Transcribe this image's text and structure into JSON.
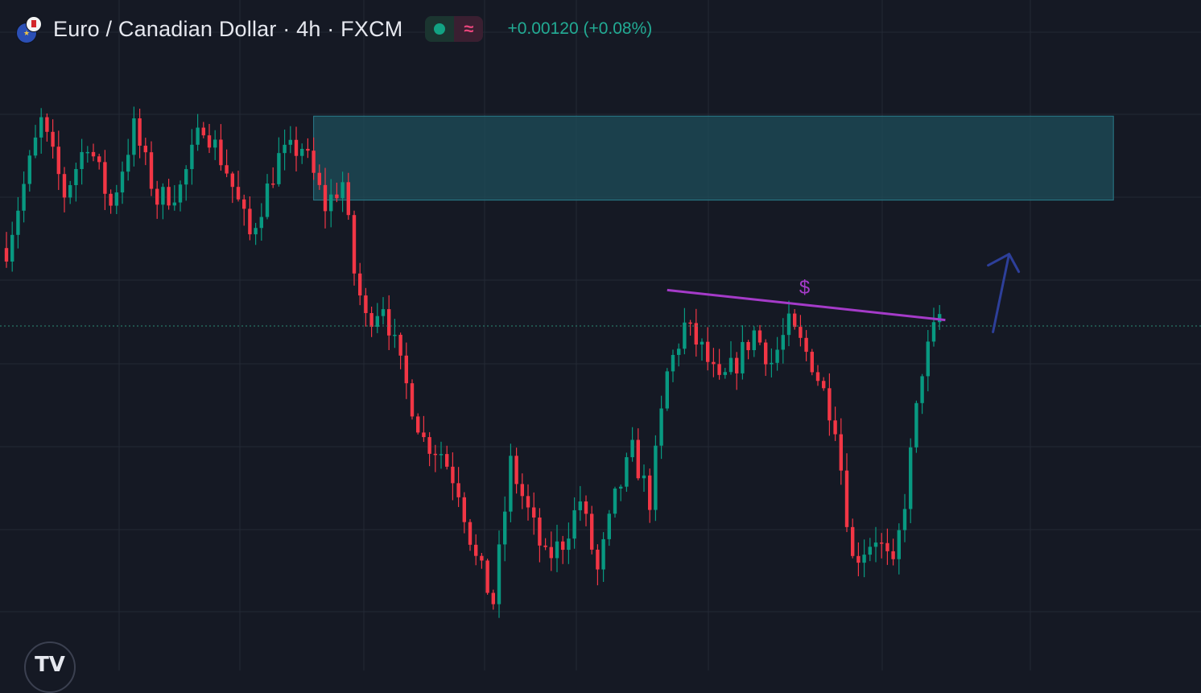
{
  "header": {
    "symbol_title": "Euro / Canadian Dollar · 4h · FXCM",
    "status_wave_glyph": "≈",
    "price_change": "+0.00120 (+0.08%)"
  },
  "logo": {
    "text": "TV"
  },
  "colors": {
    "background": "#151924",
    "grid": "#242935",
    "up": "#089981",
    "down": "#f23645",
    "zone_fill": "#1d4e5a",
    "zone_border": "#2a7d8c",
    "trendline": "#a53bc9",
    "arrow": "#2d3f9a",
    "last_price_line": "#2a8a74",
    "change_text": "#22ab94"
  },
  "icons": [
    "eu-flag-icon",
    "ca-flag-icon",
    "market-open-icon",
    "delayed-data-icon",
    "tradingview-logo"
  ],
  "chart_data": {
    "type": "candlestick",
    "title": "Euro / Canadian Dollar · 4h · FXCM",
    "interval": "4h",
    "price_change": "+0.00120 (+0.08%)",
    "y_axis_labels_visible": false,
    "x_axis_labels_visible": false,
    "ylim": [
      0,
      100
    ],
    "grid": true,
    "trend_waypoints": [
      [
        0,
        64
      ],
      [
        6,
        85
      ],
      [
        10,
        73
      ],
      [
        14,
        82
      ],
      [
        18,
        71
      ],
      [
        22,
        84
      ],
      [
        26,
        72
      ],
      [
        30,
        74
      ],
      [
        34,
        85
      ],
      [
        38,
        77
      ],
      [
        42,
        66
      ],
      [
        47,
        79
      ],
      [
        51,
        81
      ],
      [
        55,
        71
      ],
      [
        58,
        75
      ],
      [
        60,
        60
      ],
      [
        62,
        52
      ],
      [
        65,
        55
      ],
      [
        68,
        44
      ],
      [
        72,
        32
      ],
      [
        75,
        30
      ],
      [
        78,
        24
      ],
      [
        81,
        12
      ],
      [
        84,
        5
      ],
      [
        87,
        28
      ],
      [
        90,
        20
      ],
      [
        93,
        12
      ],
      [
        96,
        15
      ],
      [
        99,
        22
      ],
      [
        102,
        10
      ],
      [
        105,
        22
      ],
      [
        108,
        30
      ],
      [
        111,
        22
      ],
      [
        114,
        43
      ],
      [
        117,
        51
      ],
      [
        120,
        47
      ],
      [
        123,
        41
      ],
      [
        126,
        45
      ],
      [
        129,
        50
      ],
      [
        132,
        45
      ],
      [
        135,
        51
      ],
      [
        139,
        45
      ],
      [
        143,
        35
      ],
      [
        146,
        12
      ],
      [
        150,
        16
      ],
      [
        153,
        10
      ],
      [
        155,
        22
      ],
      [
        158,
        44
      ],
      [
        161,
        53
      ]
    ],
    "supply_zone": {
      "top": 86,
      "bottom": 72,
      "from_candle": 53,
      "to_candle": 191
    },
    "trendline": {
      "label": "$",
      "from": [
        114,
        57
      ],
      "to": [
        162,
        52
      ]
    },
    "last_price_line": 51,
    "arrow": {
      "direction": "up",
      "at_candle": 173,
      "from": 50,
      "to": 63
    }
  }
}
